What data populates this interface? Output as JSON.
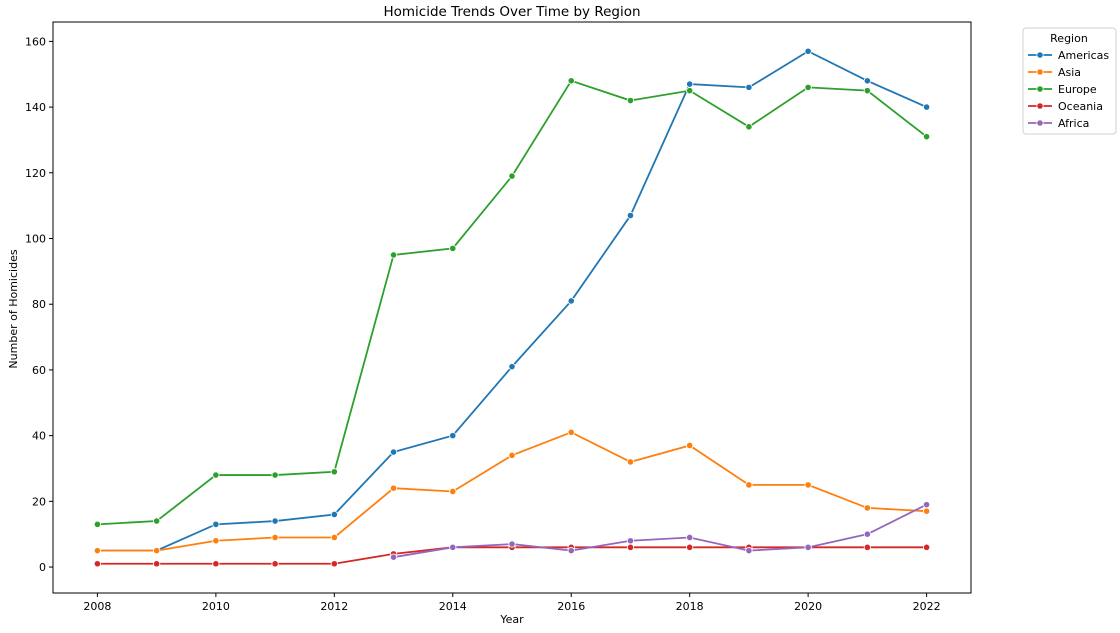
{
  "chart_data": {
    "type": "line",
    "title": "Homicide Trends Over Time by Region",
    "xlabel": "Year",
    "ylabel": "Number of Homicides",
    "xlim": [
      2007.25,
      2022.75
    ],
    "ylim": [
      -7.9,
      165.9
    ],
    "x_ticks": [
      "2008",
      "2010",
      "2012",
      "2014",
      "2016",
      "2018",
      "2020",
      "2022"
    ],
    "y_ticks": [
      "0",
      "20",
      "40",
      "60",
      "80",
      "100",
      "120",
      "140",
      "160"
    ],
    "grid": false,
    "legend": {
      "title": "Region",
      "placement": "outside-top-right"
    },
    "series": [
      {
        "name": "Americas",
        "color": "#1f77b4",
        "x": [
          2008,
          2009,
          2010,
          2011,
          2012,
          2013,
          2014,
          2015,
          2016,
          2017,
          2018,
          2019,
          2020,
          2021,
          2022
        ],
        "values": [
          5,
          5,
          13,
          14,
          16,
          35,
          40,
          61,
          81,
          107,
          147,
          146,
          157,
          148,
          140
        ]
      },
      {
        "name": "Asia",
        "color": "#ff7f0e",
        "x": [
          2008,
          2009,
          2010,
          2011,
          2012,
          2013,
          2014,
          2015,
          2016,
          2017,
          2018,
          2019,
          2020,
          2021,
          2022
        ],
        "values": [
          5,
          5,
          8,
          9,
          9,
          24,
          23,
          34,
          41,
          32,
          37,
          25,
          25,
          18,
          17
        ]
      },
      {
        "name": "Europe",
        "color": "#2ca02c",
        "x": [
          2008,
          2009,
          2010,
          2011,
          2012,
          2013,
          2014,
          2015,
          2016,
          2017,
          2018,
          2019,
          2020,
          2021,
          2022
        ],
        "values": [
          13,
          14,
          28,
          28,
          29,
          95,
          97,
          119,
          148,
          142,
          145,
          134,
          146,
          145,
          131
        ]
      },
      {
        "name": "Oceania",
        "color": "#d62728",
        "x": [
          2008,
          2009,
          2010,
          2011,
          2012,
          2013,
          2014,
          2015,
          2016,
          2017,
          2018,
          2019,
          2020,
          2021,
          2022
        ],
        "values": [
          1,
          1,
          1,
          1,
          1,
          4,
          6,
          6,
          6,
          6,
          6,
          6,
          6,
          6,
          6
        ]
      },
      {
        "name": "Africa",
        "color": "#9467bd",
        "x": [
          2013,
          2014,
          2015,
          2016,
          2017,
          2018,
          2019,
          2020,
          2021,
          2022
        ],
        "values": [
          3,
          6,
          7,
          5,
          8,
          9,
          5,
          6,
          10,
          19
        ]
      }
    ]
  }
}
